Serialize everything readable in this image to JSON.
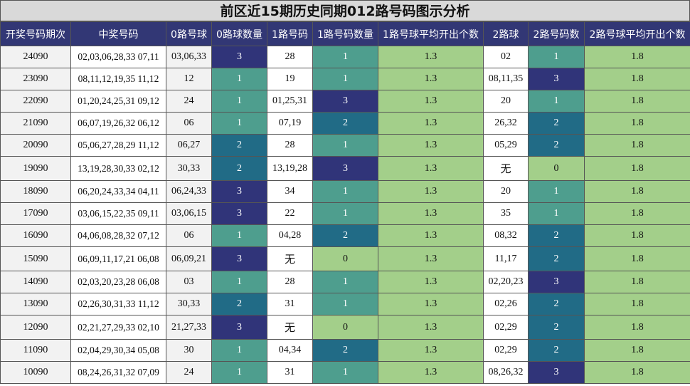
{
  "title": "前区近15期历史同期012路号码图示分析",
  "headers": [
    "开奖号码期次",
    "中奖号码",
    "0路号球",
    "0路球数量",
    "1路号码",
    "1路号码数量",
    "1路号球平均开出个数",
    "2路球",
    "2路号码数",
    "2路号球平均开出个数"
  ],
  "rows": [
    {
      "period": "24090",
      "numbers": "02,03,06,28,33 07,11",
      "r0": "03,06,33",
      "c0": "3",
      "r1": "28",
      "c1": "1",
      "avg1": "1.3",
      "r2": "02",
      "c2": "1",
      "avg2": "1.8"
    },
    {
      "period": "23090",
      "numbers": "08,11,12,19,35 11,12",
      "r0": "12",
      "c0": "1",
      "r1": "19",
      "c1": "1",
      "avg1": "1.3",
      "r2": "08,11,35",
      "c2": "3",
      "avg2": "1.8"
    },
    {
      "period": "22090",
      "numbers": "01,20,24,25,31 09,12",
      "r0": "24",
      "c0": "1",
      "r1": "01,25,31",
      "c1": "3",
      "avg1": "1.3",
      "r2": "20",
      "c2": "1",
      "avg2": "1.8"
    },
    {
      "period": "21090",
      "numbers": "06,07,19,26,32 06,12",
      "r0": "06",
      "c0": "1",
      "r1": "07,19",
      "c1": "2",
      "avg1": "1.3",
      "r2": "26,32",
      "c2": "2",
      "avg2": "1.8"
    },
    {
      "period": "20090",
      "numbers": "05,06,27,28,29 11,12",
      "r0": "06,27",
      "c0": "2",
      "r1": "28",
      "c1": "1",
      "avg1": "1.3",
      "r2": "05,29",
      "c2": "2",
      "avg2": "1.8"
    },
    {
      "period": "19090",
      "numbers": "13,19,28,30,33 02,12",
      "r0": "30,33",
      "c0": "2",
      "r1": "13,19,28",
      "c1": "3",
      "avg1": "1.3",
      "r2": "无",
      "c2": "0",
      "avg2": "1.8"
    },
    {
      "period": "18090",
      "numbers": "06,20,24,33,34 04,11",
      "r0": "06,24,33",
      "c0": "3",
      "r1": "34",
      "c1": "1",
      "avg1": "1.3",
      "r2": "20",
      "c2": "1",
      "avg2": "1.8"
    },
    {
      "period": "17090",
      "numbers": "03,06,15,22,35 09,11",
      "r0": "03,06,15",
      "c0": "3",
      "r1": "22",
      "c1": "1",
      "avg1": "1.3",
      "r2": "35",
      "c2": "1",
      "avg2": "1.8"
    },
    {
      "period": "16090",
      "numbers": "04,06,08,28,32 07,12",
      "r0": "06",
      "c0": "1",
      "r1": "04,28",
      "c1": "2",
      "avg1": "1.3",
      "r2": "08,32",
      "c2": "2",
      "avg2": "1.8"
    },
    {
      "period": "15090",
      "numbers": "06,09,11,17,21 06,08",
      "r0": "06,09,21",
      "c0": "3",
      "r1": "无",
      "c1": "0",
      "avg1": "1.3",
      "r2": "11,17",
      "c2": "2",
      "avg2": "1.8"
    },
    {
      "period": "14090",
      "numbers": "02,03,20,23,28 06,08",
      "r0": "03",
      "c0": "1",
      "r1": "28",
      "c1": "1",
      "avg1": "1.3",
      "r2": "02,20,23",
      "c2": "3",
      "avg2": "1.8"
    },
    {
      "period": "13090",
      "numbers": "02,26,30,31,33 11,12",
      "r0": "30,33",
      "c0": "2",
      "r1": "31",
      "c1": "1",
      "avg1": "1.3",
      "r2": "02,26",
      "c2": "2",
      "avg2": "1.8"
    },
    {
      "period": "12090",
      "numbers": "02,21,27,29,33 02,10",
      "r0": "21,27,33",
      "c0": "3",
      "r1": "无",
      "c1": "0",
      "avg1": "1.3",
      "r2": "02,29",
      "c2": "2",
      "avg2": "1.8"
    },
    {
      "period": "11090",
      "numbers": "02,04,29,30,34 05,08",
      "r0": "30",
      "c0": "1",
      "r1": "04,34",
      "c1": "2",
      "avg1": "1.3",
      "r2": "02,29",
      "c2": "2",
      "avg2": "1.8"
    },
    {
      "period": "10090",
      "numbers": "08,24,26,31,32 07,09",
      "r0": "24",
      "c0": "1",
      "r1": "31",
      "c1": "1",
      "avg1": "1.3",
      "r2": "08,26,32",
      "c2": "3",
      "avg2": "1.8"
    }
  ],
  "colors": {
    "header_bg": "#323775",
    "count0": "#a3cf8a",
    "count1": "#4e9e8e",
    "count2": "#216b86",
    "count3": "#303479"
  }
}
